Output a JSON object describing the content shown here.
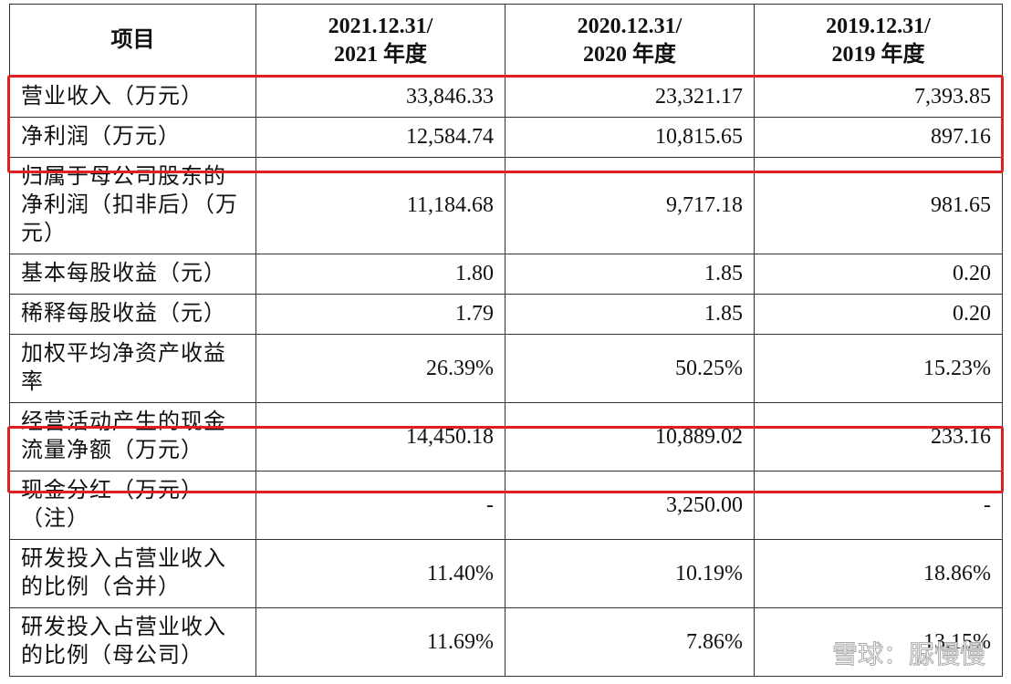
{
  "table": {
    "header": [
      [
        "项目"
      ],
      [
        "2021.12.31/",
        "2021 年度"
      ],
      [
        "2020.12.31/",
        "2020 年度"
      ],
      [
        "2019.12.31/",
        "2019 年度"
      ]
    ],
    "rows": [
      [
        "营业收入（万元）",
        "33,846.33",
        "23,321.17",
        "7,393.85"
      ],
      [
        "净利润（万元）",
        "12,584.74",
        "10,815.65",
        "897.16"
      ],
      [
        "归属于母公司股东的净利润（扣非后）（万元）",
        "11,184.68",
        "9,717.18",
        "981.65"
      ],
      [
        "基本每股收益（元）",
        "1.80",
        "1.85",
        "0.20"
      ],
      [
        "稀释每股收益（元）",
        "1.79",
        "1.85",
        "0.20"
      ],
      [
        "加权平均净资产收益率",
        "26.39%",
        "50.25%",
        "15.23%"
      ],
      [
        "经营活动产生的现金流量净额（万元）",
        "14,450.18",
        "10,889.02",
        "233.16"
      ],
      [
        "现金分红（万元）（注）",
        "-",
        "3,250.00",
        "-"
      ],
      [
        "研发投入占营业收入的比例（合并）",
        "11.40%",
        "10.19%",
        "18.86%"
      ],
      [
        "研发投入占营业收入的比例（母公司）",
        "11.69%",
        "7.86%",
        "13.15%"
      ]
    ]
  },
  "watermark": "雪球：脲慢慢"
}
